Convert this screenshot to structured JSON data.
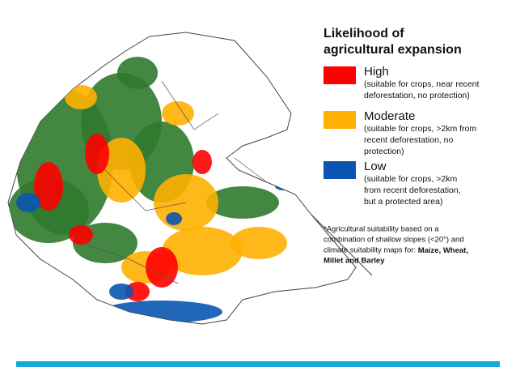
{
  "legend": {
    "title": [
      "Likelihood of",
      "agricultural expansion"
    ],
    "items": [
      {
        "label": "High",
        "color": "#ff0000",
        "description": [
          "(suitable for crops, near recent",
          "deforestation, no protection)"
        ]
      },
      {
        "label": "Moderate",
        "color": "#ffb000",
        "description": [
          "(suitable for crops, >2km from",
          "recent deforestation, no",
          "protection)"
        ]
      },
      {
        "label": "Low",
        "color": "#0a55b0",
        "description": [
          "(suitable for crops, >2km",
          "from recent deforestation,",
          "but a protected area)"
        ]
      }
    ]
  },
  "map": {
    "forest_color": "#2f7a2f"
  },
  "footnote": {
    "lines": [
      "*Agricultural suitability based on a",
      "combination of shallow slopes (<20°) and",
      "climate suitability maps for: "
    ],
    "bold": [
      "Maize, Wheat,",
      "Millet and Barley"
    ]
  }
}
